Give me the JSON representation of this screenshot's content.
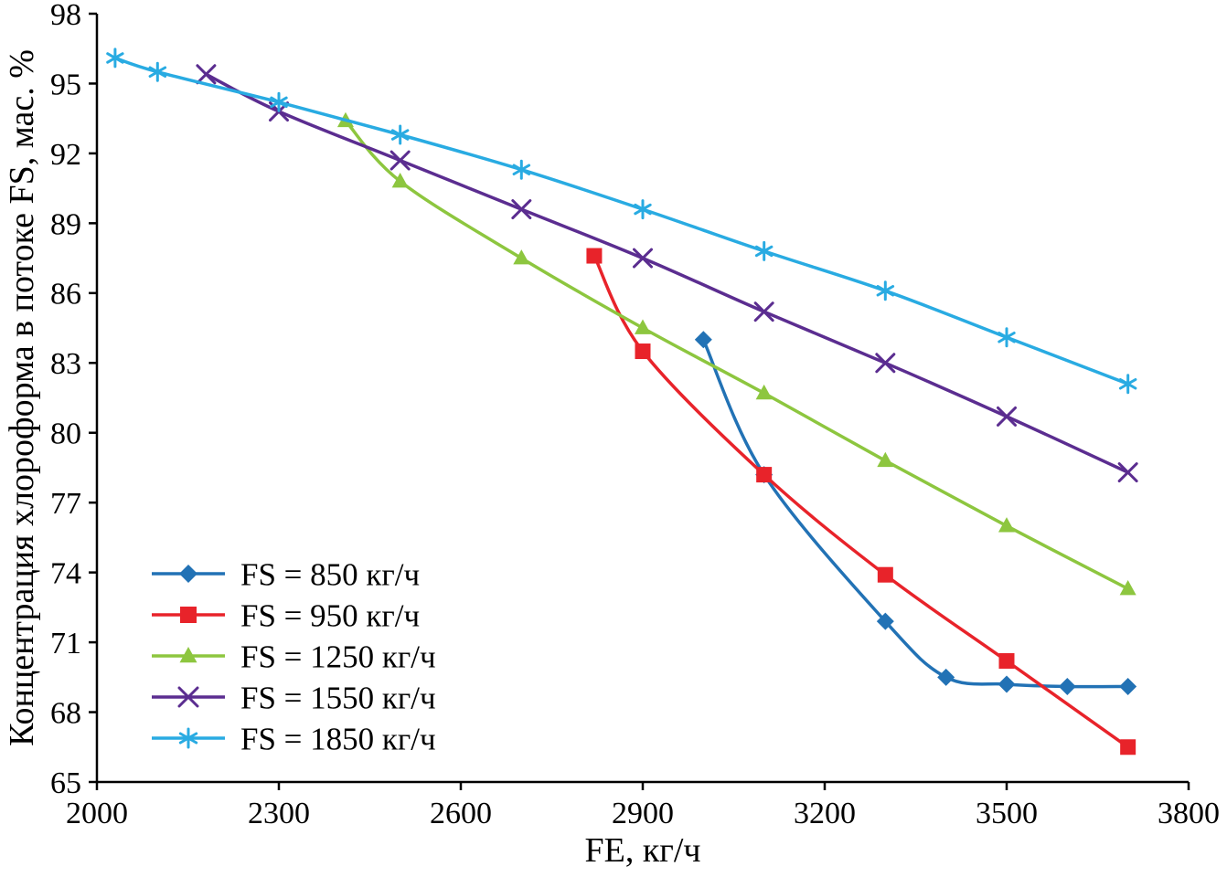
{
  "chart_data": {
    "type": "line",
    "title": "",
    "xlabel": "FE, кг/ч",
    "ylabel": "Концентрация хлороформа в потоке FS, мас. %",
    "xlim": [
      2000,
      3800
    ],
    "ylim": [
      65,
      98
    ],
    "xticks": [
      2000,
      2300,
      2600,
      2900,
      3200,
      3500,
      3800
    ],
    "yticks": [
      65,
      68,
      71,
      74,
      77,
      80,
      83,
      86,
      89,
      92,
      95,
      98
    ],
    "grid": false,
    "legend_position": "lower-left-inside",
    "series": [
      {
        "name": "FS = 850 кг/ч",
        "color": "#2272b5",
        "marker": "diamond",
        "points": [
          [
            3000,
            84.0
          ],
          [
            3100,
            78.2
          ],
          [
            3300,
            71.9
          ],
          [
            3400,
            69.5
          ],
          [
            3500,
            69.2
          ],
          [
            3600,
            69.1
          ],
          [
            3700,
            69.1
          ]
        ]
      },
      {
        "name": "FS = 950 кг/ч",
        "color": "#e8232a",
        "marker": "square",
        "points": [
          [
            2820,
            87.6
          ],
          [
            2900,
            83.5
          ],
          [
            3100,
            78.2
          ],
          [
            3300,
            73.9
          ],
          [
            3500,
            70.2
          ],
          [
            3700,
            66.5
          ]
        ]
      },
      {
        "name": "FS = 1250 кг/ч",
        "color": "#8dc63f",
        "marker": "triangle",
        "points": [
          [
            2410,
            93.4
          ],
          [
            2500,
            90.8
          ],
          [
            2700,
            87.5
          ],
          [
            2900,
            84.5
          ],
          [
            3100,
            81.7
          ],
          [
            3300,
            78.8
          ],
          [
            3500,
            76.0
          ],
          [
            3700,
            73.3
          ]
        ]
      },
      {
        "name": "FS = 1550 кг/ч",
        "color": "#5b2d90",
        "marker": "x",
        "points": [
          [
            2180,
            95.4
          ],
          [
            2300,
            93.8
          ],
          [
            2500,
            91.7
          ],
          [
            2700,
            89.6
          ],
          [
            2900,
            87.5
          ],
          [
            3100,
            85.2
          ],
          [
            3300,
            83.0
          ],
          [
            3500,
            80.7
          ],
          [
            3700,
            78.3
          ]
        ]
      },
      {
        "name": "FS = 1850 кг/ч",
        "color": "#29abe2",
        "marker": "asterisk",
        "points": [
          [
            2030,
            96.1
          ],
          [
            2100,
            95.5
          ],
          [
            2300,
            94.2
          ],
          [
            2500,
            92.8
          ],
          [
            2700,
            91.3
          ],
          [
            2900,
            89.6
          ],
          [
            3100,
            87.8
          ],
          [
            3300,
            86.1
          ],
          [
            3500,
            84.1
          ],
          [
            3700,
            82.1
          ]
        ]
      }
    ]
  }
}
